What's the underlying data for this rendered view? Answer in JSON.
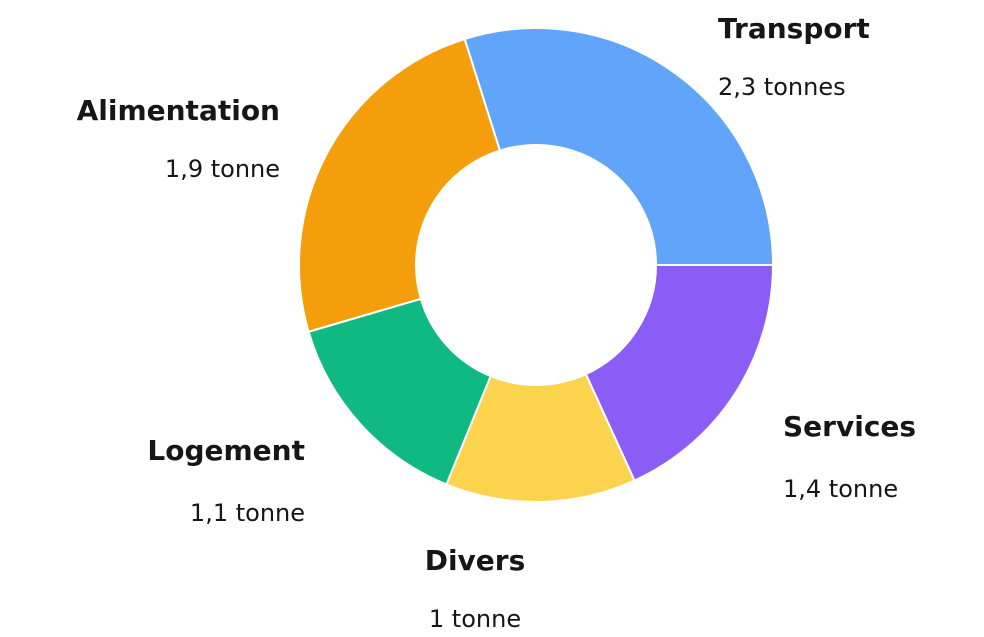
{
  "chart_data": {
    "type": "donut",
    "categories": [
      "Transport",
      "Services",
      "Divers",
      "Logement",
      "Alimentation"
    ],
    "values": [
      2.3,
      1.4,
      1,
      1.1,
      1.9
    ],
    "value_labels": [
      "2,3 tonnes",
      "1,4 tonne",
      "1 tonne",
      "1,1 tonne",
      "1,9 tonne"
    ],
    "colors": [
      "#60a5fa",
      "#8b5cf6",
      "#fcd34d",
      "#10b981",
      "#f59e0b"
    ]
  }
}
